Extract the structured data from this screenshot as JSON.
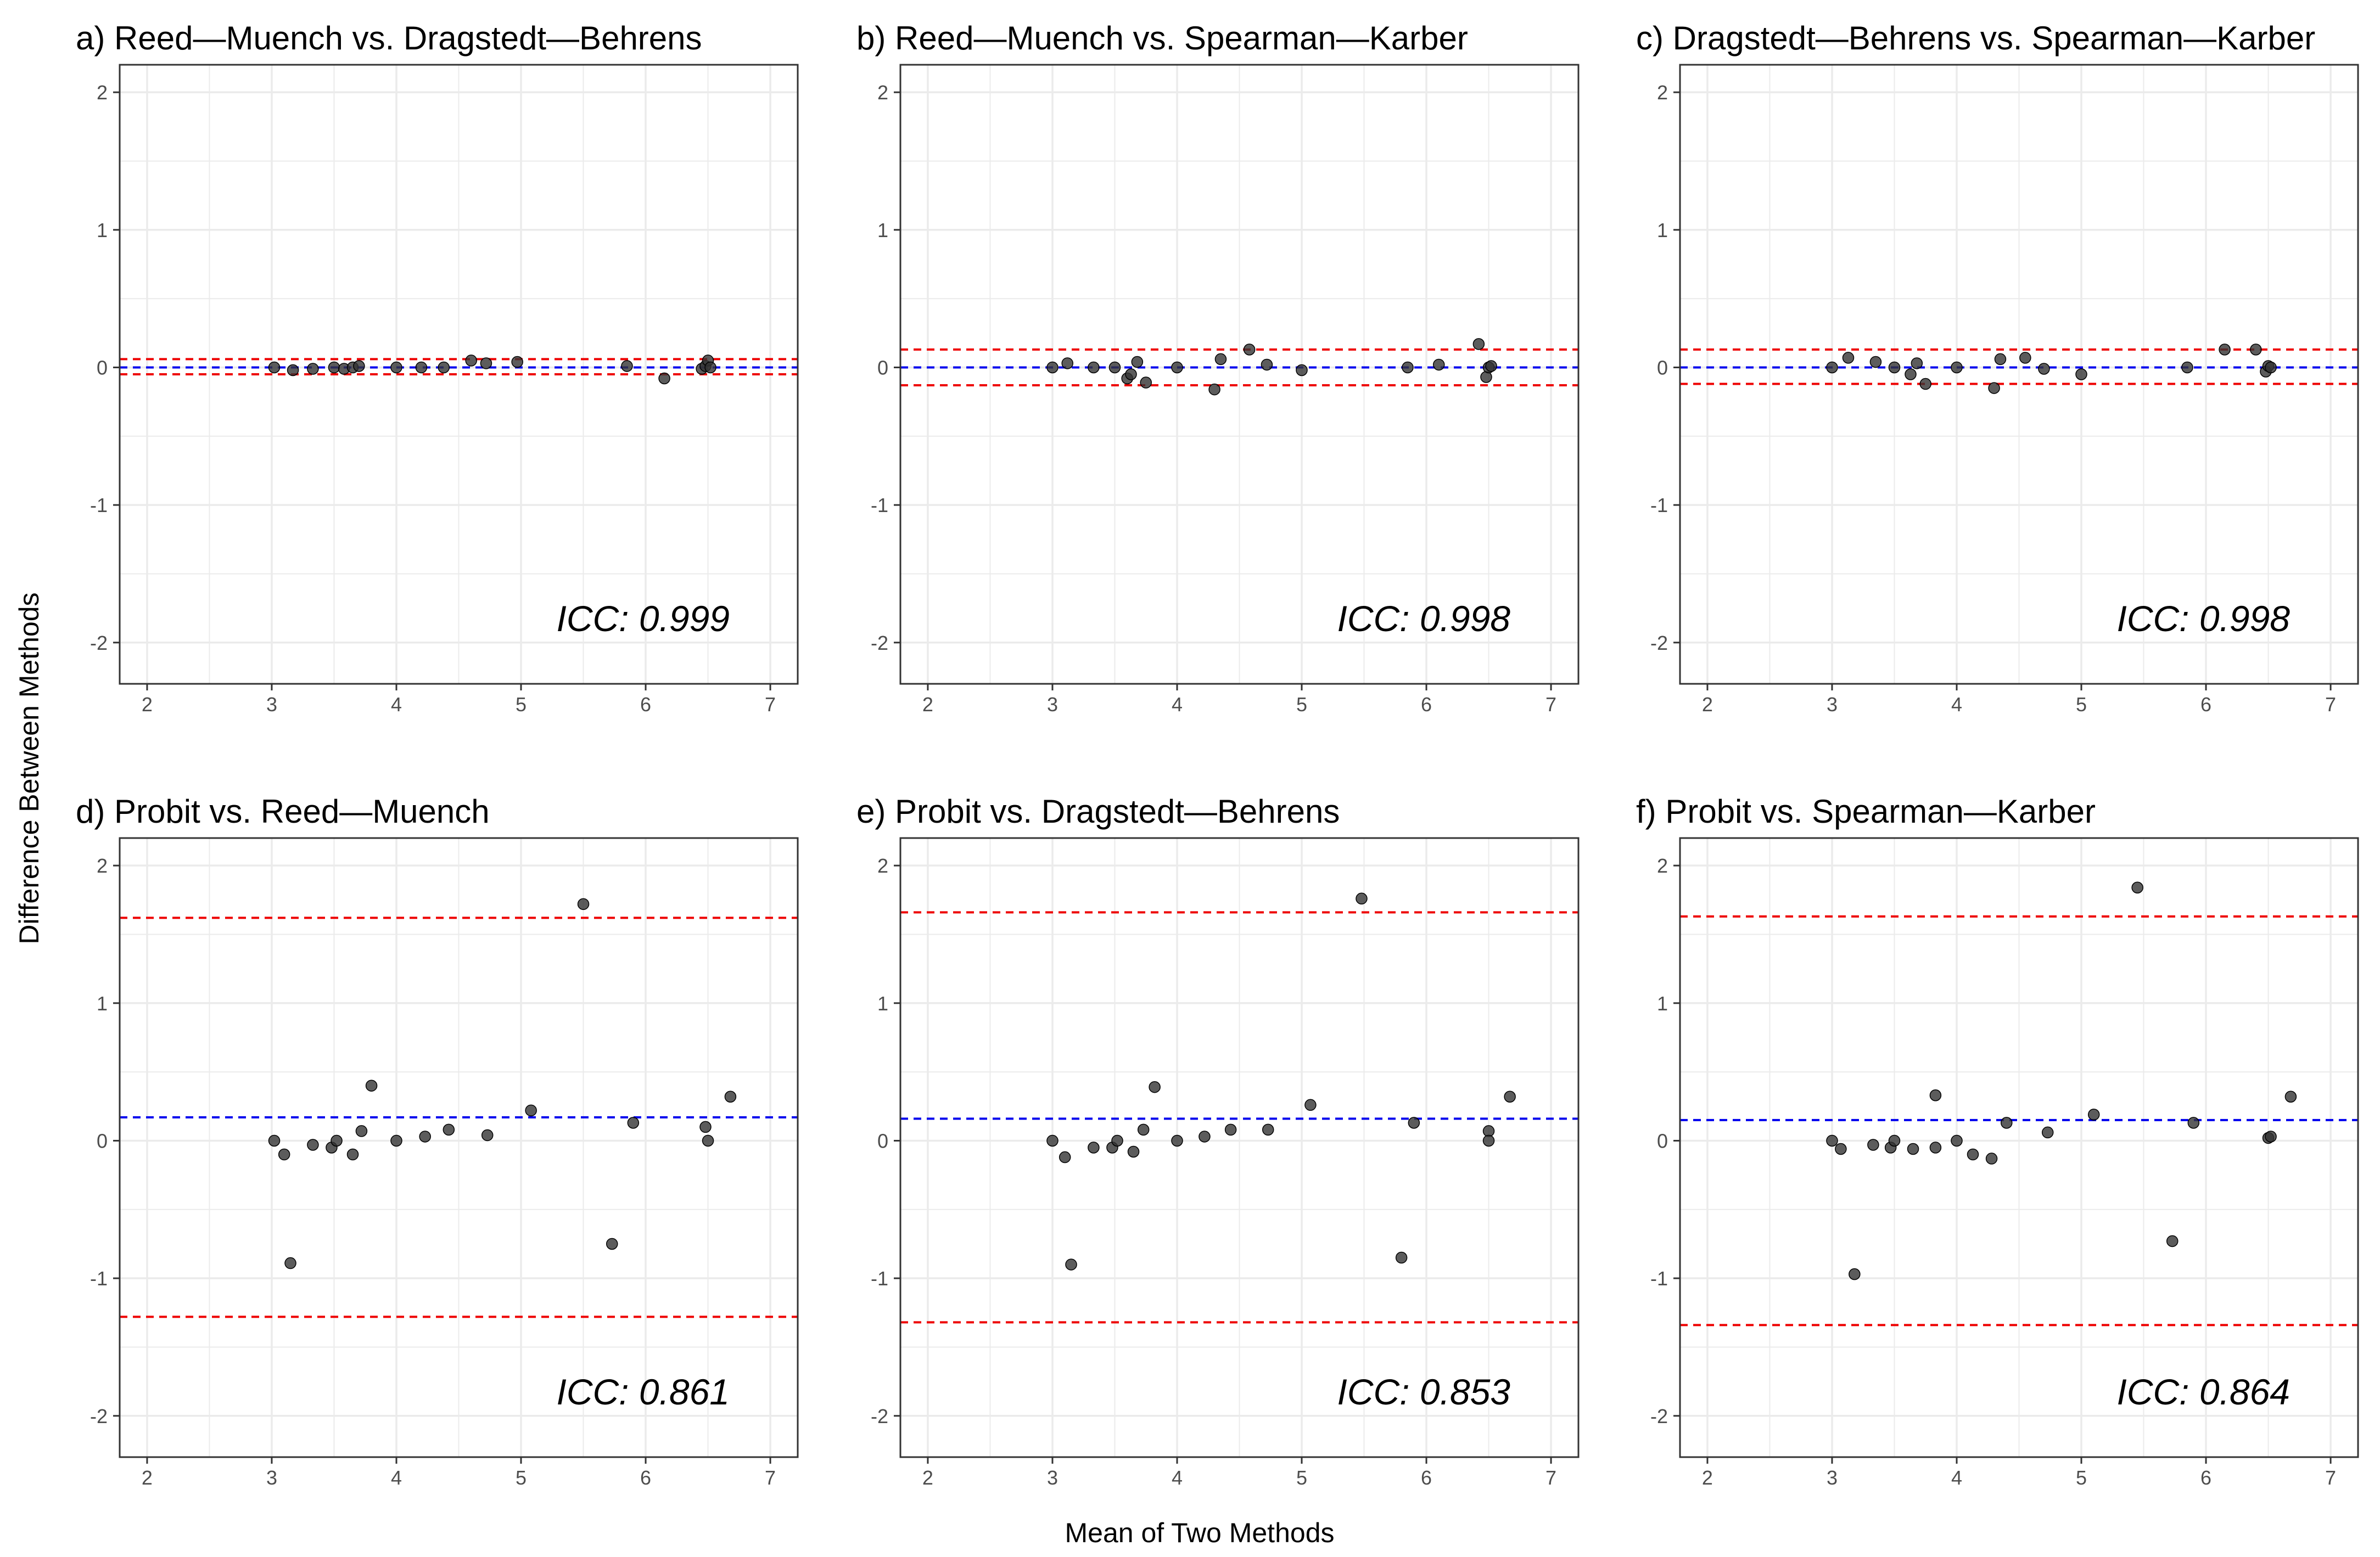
{
  "figure": {
    "xlabel": "Mean of Two Methods",
    "ylabel": "Difference Between Methods"
  },
  "colors": {
    "mean_line": "#0000ee",
    "limit_line": "#ee0000",
    "point_fill": "#333333",
    "grid": "#ebebeb",
    "panel_border": "#333333"
  },
  "chart_data": [
    {
      "type": "scatter",
      "title": "a) Reed—Muench vs. Dragstedt—Behrens",
      "xlim": [
        1.78,
        7.22
      ],
      "ylim": [
        -2.3,
        2.2
      ],
      "x_ticks": [
        2,
        3,
        4,
        5,
        6,
        7
      ],
      "y_ticks": [
        -2,
        -1,
        0,
        1,
        2
      ],
      "mean_diff": 0.0,
      "upper_loa": 0.06,
      "lower_loa": -0.05,
      "annotation": "ICC: 0.999",
      "points": [
        [
          3.02,
          0.0
        ],
        [
          3.17,
          -0.02
        ],
        [
          3.33,
          -0.01
        ],
        [
          3.5,
          0.0
        ],
        [
          3.58,
          -0.01
        ],
        [
          3.65,
          0.0
        ],
        [
          3.7,
          0.01
        ],
        [
          4.0,
          0.0
        ],
        [
          4.2,
          0.0
        ],
        [
          4.38,
          0.0
        ],
        [
          4.6,
          0.05
        ],
        [
          4.72,
          0.03
        ],
        [
          4.97,
          0.04
        ],
        [
          5.85,
          0.01
        ],
        [
          6.15,
          -0.08
        ],
        [
          6.45,
          -0.01
        ],
        [
          6.48,
          0.01
        ],
        [
          6.5,
          0.05
        ],
        [
          6.52,
          0.0
        ]
      ]
    },
    {
      "type": "scatter",
      "title": "b) Reed—Muench vs. Spearman—Karber",
      "xlim": [
        1.78,
        7.22
      ],
      "ylim": [
        -2.3,
        2.2
      ],
      "x_ticks": [
        2,
        3,
        4,
        5,
        6,
        7
      ],
      "y_ticks": [
        -2,
        -1,
        0,
        1,
        2
      ],
      "mean_diff": 0.0,
      "upper_loa": 0.13,
      "lower_loa": -0.13,
      "annotation": "ICC: 0.998",
      "points": [
        [
          3.0,
          0.0
        ],
        [
          3.12,
          0.03
        ],
        [
          3.33,
          0.0
        ],
        [
          3.5,
          0.0
        ],
        [
          3.6,
          -0.08
        ],
        [
          3.63,
          -0.05
        ],
        [
          3.68,
          0.04
        ],
        [
          3.75,
          -0.11
        ],
        [
          4.0,
          0.0
        ],
        [
          4.3,
          -0.16
        ],
        [
          4.35,
          0.06
        ],
        [
          4.58,
          0.13
        ],
        [
          4.72,
          0.02
        ],
        [
          5.0,
          -0.02
        ],
        [
          5.85,
          0.0
        ],
        [
          6.1,
          0.02
        ],
        [
          6.42,
          0.17
        ],
        [
          6.48,
          -0.07
        ],
        [
          6.5,
          0.0
        ],
        [
          6.52,
          0.01
        ]
      ]
    },
    {
      "type": "scatter",
      "title": "c) Dragstedt—Behrens vs. Spearman—Karber",
      "xlim": [
        1.78,
        7.22
      ],
      "ylim": [
        -2.3,
        2.2
      ],
      "x_ticks": [
        2,
        3,
        4,
        5,
        6,
        7
      ],
      "y_ticks": [
        -2,
        -1,
        0,
        1,
        2
      ],
      "mean_diff": 0.0,
      "upper_loa": 0.13,
      "lower_loa": -0.12,
      "annotation": "ICC: 0.998",
      "points": [
        [
          3.0,
          0.0
        ],
        [
          3.13,
          0.07
        ],
        [
          3.35,
          0.04
        ],
        [
          3.5,
          0.0
        ],
        [
          3.63,
          -0.05
        ],
        [
          3.68,
          0.03
        ],
        [
          3.75,
          -0.12
        ],
        [
          4.0,
          0.0
        ],
        [
          4.3,
          -0.15
        ],
        [
          4.35,
          0.06
        ],
        [
          4.55,
          0.07
        ],
        [
          4.7,
          -0.01
        ],
        [
          5.0,
          -0.05
        ],
        [
          5.85,
          0.0
        ],
        [
          6.15,
          0.13
        ],
        [
          6.4,
          0.13
        ],
        [
          6.48,
          -0.03
        ],
        [
          6.5,
          0.01
        ],
        [
          6.52,
          0.0
        ]
      ]
    },
    {
      "type": "scatter",
      "title": "d) Probit vs. Reed—Muench",
      "xlim": [
        1.78,
        7.22
      ],
      "ylim": [
        -2.3,
        2.2
      ],
      "x_ticks": [
        2,
        3,
        4,
        5,
        6,
        7
      ],
      "y_ticks": [
        -2,
        -1,
        0,
        1,
        2
      ],
      "mean_diff": 0.17,
      "upper_loa": 1.62,
      "lower_loa": -1.28,
      "annotation": "ICC: 0.861",
      "points": [
        [
          3.02,
          0.0
        ],
        [
          3.1,
          -0.1
        ],
        [
          3.15,
          -0.89
        ],
        [
          3.33,
          -0.03
        ],
        [
          3.48,
          -0.05
        ],
        [
          3.52,
          0.0
        ],
        [
          3.65,
          -0.1
        ],
        [
          3.72,
          0.07
        ],
        [
          3.8,
          0.4
        ],
        [
          4.0,
          0.0
        ],
        [
          4.23,
          0.03
        ],
        [
          4.42,
          0.08
        ],
        [
          4.73,
          0.04
        ],
        [
          5.08,
          0.22
        ],
        [
          5.5,
          1.72
        ],
        [
          5.73,
          -0.75
        ],
        [
          5.9,
          0.13
        ],
        [
          6.48,
          0.1
        ],
        [
          6.5,
          0.0
        ],
        [
          6.68,
          0.32
        ]
      ]
    },
    {
      "type": "scatter",
      "title": "e) Probit vs. Dragstedt—Behrens",
      "xlim": [
        1.78,
        7.22
      ],
      "ylim": [
        -2.3,
        2.2
      ],
      "x_ticks": [
        2,
        3,
        4,
        5,
        6,
        7
      ],
      "y_ticks": [
        -2,
        -1,
        0,
        1,
        2
      ],
      "mean_diff": 0.16,
      "upper_loa": 1.66,
      "lower_loa": -1.32,
      "annotation": "ICC: 0.853",
      "points": [
        [
          3.0,
          0.0
        ],
        [
          3.1,
          -0.12
        ],
        [
          3.15,
          -0.9
        ],
        [
          3.33,
          -0.05
        ],
        [
          3.48,
          -0.05
        ],
        [
          3.52,
          0.0
        ],
        [
          3.65,
          -0.08
        ],
        [
          3.73,
          0.08
        ],
        [
          3.82,
          0.39
        ],
        [
          4.0,
          0.0
        ],
        [
          4.22,
          0.03
        ],
        [
          4.43,
          0.08
        ],
        [
          4.73,
          0.08
        ],
        [
          5.07,
          0.26
        ],
        [
          5.48,
          1.76
        ],
        [
          5.8,
          -0.85
        ],
        [
          5.9,
          0.13
        ],
        [
          6.5,
          0.07
        ],
        [
          6.5,
          0.0
        ],
        [
          6.67,
          0.32
        ]
      ]
    },
    {
      "type": "scatter",
      "title": "f) Probit vs. Spearman—Karber",
      "xlim": [
        1.78,
        7.22
      ],
      "ylim": [
        -2.3,
        2.2
      ],
      "x_ticks": [
        2,
        3,
        4,
        5,
        6,
        7
      ],
      "y_ticks": [
        -2,
        -1,
        0,
        1,
        2
      ],
      "mean_diff": 0.15,
      "upper_loa": 1.63,
      "lower_loa": -1.34,
      "annotation": "ICC: 0.864",
      "points": [
        [
          3.0,
          0.0
        ],
        [
          3.07,
          -0.06
        ],
        [
          3.18,
          -0.97
        ],
        [
          3.33,
          -0.03
        ],
        [
          3.47,
          -0.05
        ],
        [
          3.5,
          0.0
        ],
        [
          3.65,
          -0.06
        ],
        [
          3.83,
          -0.05
        ],
        [
          3.83,
          0.33
        ],
        [
          4.0,
          0.0
        ],
        [
          4.13,
          -0.1
        ],
        [
          4.28,
          -0.13
        ],
        [
          4.4,
          0.13
        ],
        [
          4.73,
          0.06
        ],
        [
          5.1,
          0.19
        ],
        [
          5.45,
          1.84
        ],
        [
          5.73,
          -0.73
        ],
        [
          5.9,
          0.13
        ],
        [
          6.5,
          0.02
        ],
        [
          6.52,
          0.03
        ],
        [
          6.68,
          0.32
        ]
      ]
    }
  ]
}
